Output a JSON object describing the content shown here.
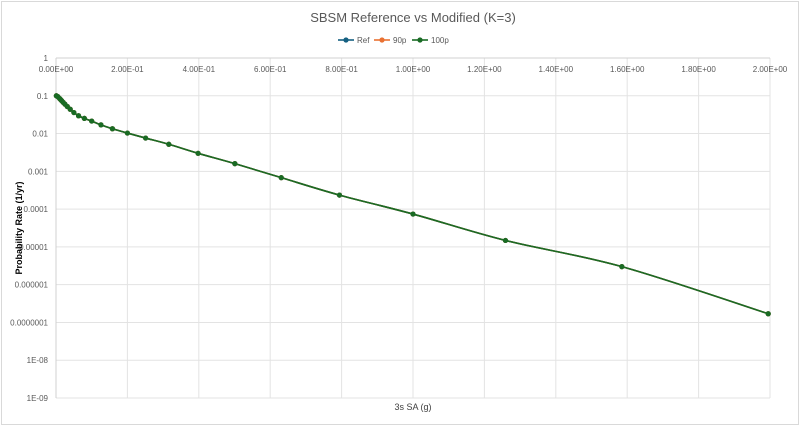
{
  "chart_data": {
    "type": "line",
    "title": "SBSM Reference vs Modified (K=3)",
    "xlabel": "3s SA (g)",
    "ylabel": "Probability Rate (1/yr)",
    "xlim": [
      0,
      2.0
    ],
    "ylim": [
      1e-09,
      1
    ],
    "yscale": "log",
    "grid": true,
    "legend": "top",
    "x_ticks": [
      "0.00E+00",
      "2.00E-01",
      "4.00E-01",
      "6.00E-01",
      "8.00E-01",
      "1.00E+00",
      "1.20E+00",
      "1.40E+00",
      "1.60E+00",
      "1.80E+00",
      "2.00E+00"
    ],
    "y_ticks": [
      "1",
      "0.1",
      "0.01",
      "0.001",
      "0.0001",
      "0.00001",
      "0.000001",
      "0.0000001",
      "1E-08",
      "1E-09"
    ],
    "x": [
      0.001,
      0.005,
      0.01,
      0.0126,
      0.0158,
      0.02,
      0.0251,
      0.0316,
      0.0398,
      0.0501,
      0.0631,
      0.0794,
      0.1,
      0.126,
      0.158,
      0.2,
      0.251,
      0.316,
      0.398,
      0.501,
      0.631,
      0.794,
      1.0,
      1.259,
      1.585,
      1.995
    ],
    "series": [
      {
        "name": "Ref",
        "color": "#156082",
        "values": [
          0.1,
          0.095,
          0.085,
          0.08,
          0.074,
          0.067,
          0.06,
          0.052,
          0.044,
          0.036,
          0.0296,
          0.0252,
          0.0214,
          0.017,
          0.0134,
          0.0103,
          0.0076,
          0.0052,
          0.003,
          0.0016,
          0.00068,
          0.000235,
          7.4e-05,
          1.48e-05,
          3e-06,
          1.7e-07
        ]
      },
      {
        "name": "90p",
        "color": "#E97132",
        "values": [
          0.1,
          0.095,
          0.085,
          0.08,
          0.074,
          0.067,
          0.06,
          0.052,
          0.044,
          0.036,
          0.0296,
          0.0252,
          0.0214,
          0.017,
          0.0134,
          0.0103,
          0.0076,
          0.0052,
          0.003,
          0.0016,
          0.00068,
          0.000235,
          7.4e-05,
          1.48e-05,
          3e-06,
          1.7e-07
        ]
      },
      {
        "name": "100p",
        "color": "#196B24",
        "values": [
          0.1,
          0.095,
          0.085,
          0.08,
          0.074,
          0.067,
          0.06,
          0.052,
          0.044,
          0.036,
          0.0296,
          0.0252,
          0.0214,
          0.017,
          0.0134,
          0.0103,
          0.0076,
          0.0052,
          0.003,
          0.0016,
          0.00068,
          0.000235,
          7.4e-05,
          1.48e-05,
          3e-06,
          1.7e-07
        ]
      }
    ]
  }
}
